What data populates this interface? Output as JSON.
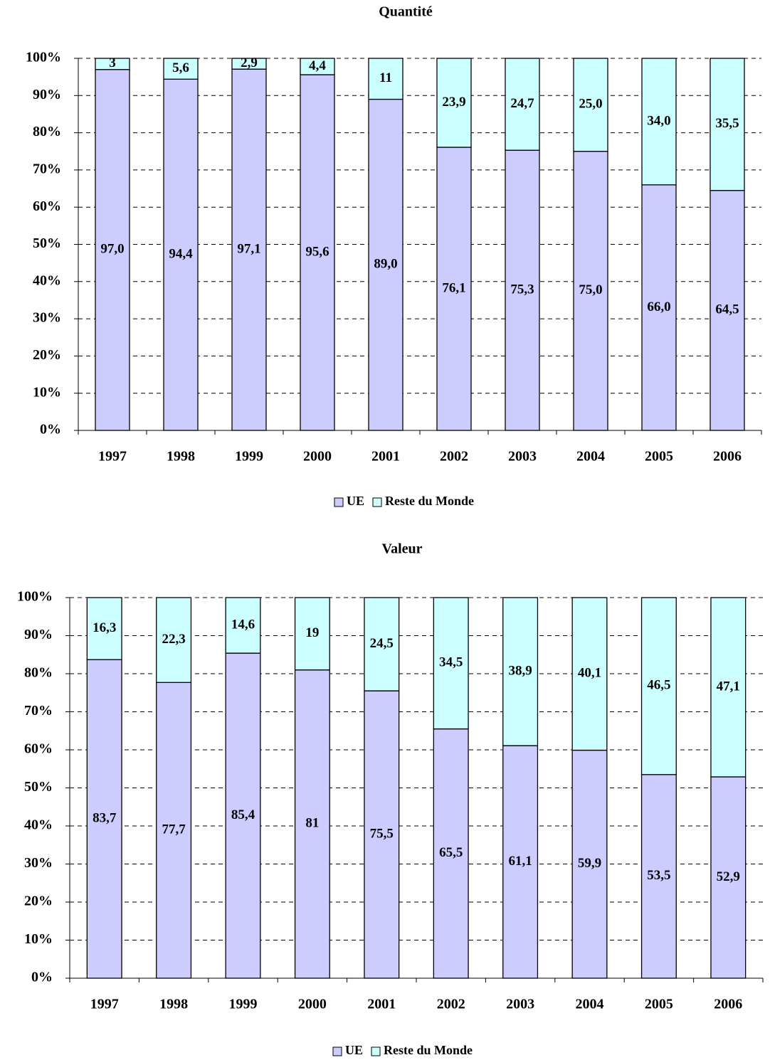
{
  "chart_data": [
    {
      "type": "bar",
      "stacked": true,
      "title": "Quantité",
      "categories": [
        "1997",
        "1998",
        "1999",
        "2000",
        "2001",
        "2002",
        "2003",
        "2004",
        "2005",
        "2006"
      ],
      "series": [
        {
          "name": "UE",
          "color": "#ccccff",
          "values": [
            97.0,
            94.4,
            97.1,
            95.6,
            89.0,
            76.1,
            75.3,
            75.0,
            66.0,
            64.5
          ],
          "value_labels": [
            "97,0",
            "94,4",
            "97,1",
            "95,6",
            "89,0",
            "76,1",
            "75,3",
            "75,0",
            "66,0",
            "64,5"
          ]
        },
        {
          "name": "Reste du Monde",
          "color": "#ccffff",
          "values": [
            3,
            5.6,
            2.9,
            4.4,
            11,
            23.9,
            24.7,
            25.0,
            34.0,
            35.5
          ],
          "value_labels": [
            "3",
            "5,6",
            "2,9",
            "4,4",
            "11",
            "23,9",
            "24,7",
            "25,0",
            "34,0",
            "35,5"
          ]
        }
      ],
      "ylim": [
        0,
        100
      ],
      "yticks": [
        {
          "value": 0,
          "label": "0%"
        },
        {
          "value": 10,
          "label": "10%"
        },
        {
          "value": 20,
          "label": "20%"
        },
        {
          "value": 30,
          "label": "30%"
        },
        {
          "value": 40,
          "label": "40%"
        },
        {
          "value": 50,
          "label": "50%"
        },
        {
          "value": 60,
          "label": "60%"
        },
        {
          "value": 70,
          "label": "70%"
        },
        {
          "value": 80,
          "label": "80%"
        },
        {
          "value": 90,
          "label": "90%"
        },
        {
          "value": 100,
          "label": "100%"
        }
      ],
      "grid": true,
      "legend": "bottom"
    },
    {
      "type": "bar",
      "stacked": true,
      "title": "Valeur",
      "categories": [
        "1997",
        "1998",
        "1999",
        "2000",
        "2001",
        "2002",
        "2003",
        "2004",
        "2005",
        "2006"
      ],
      "series": [
        {
          "name": "UE",
          "color": "#ccccff",
          "values": [
            83.7,
            77.7,
            85.4,
            81,
            75.5,
            65.5,
            61.1,
            59.9,
            53.5,
            52.9
          ],
          "value_labels": [
            "83,7",
            "77,7",
            "85,4",
            "81",
            "75,5",
            "65,5",
            "61,1",
            "59,9",
            "53,5",
            "52,9"
          ]
        },
        {
          "name": "Reste du Monde",
          "color": "#ccffff",
          "values": [
            16.3,
            22.3,
            14.6,
            19,
            24.5,
            34.5,
            38.9,
            40.1,
            46.5,
            47.1
          ],
          "value_labels": [
            "16,3",
            "22,3",
            "14,6",
            "19",
            "24,5",
            "34,5",
            "38,9",
            "40,1",
            "46,5",
            "47,1"
          ]
        }
      ],
      "ylim": [
        0,
        100
      ],
      "yticks": [
        {
          "value": 0,
          "label": "0%"
        },
        {
          "value": 10,
          "label": "10%"
        },
        {
          "value": 20,
          "label": "20%"
        },
        {
          "value": 30,
          "label": "30%"
        },
        {
          "value": 40,
          "label": "40%"
        },
        {
          "value": 50,
          "label": "50%"
        },
        {
          "value": 60,
          "label": "60%"
        },
        {
          "value": 70,
          "label": "70%"
        },
        {
          "value": 80,
          "label": "80%"
        },
        {
          "value": 90,
          "label": "90%"
        },
        {
          "value": 100,
          "label": "100%"
        }
      ],
      "grid": true,
      "legend": "bottom"
    }
  ]
}
